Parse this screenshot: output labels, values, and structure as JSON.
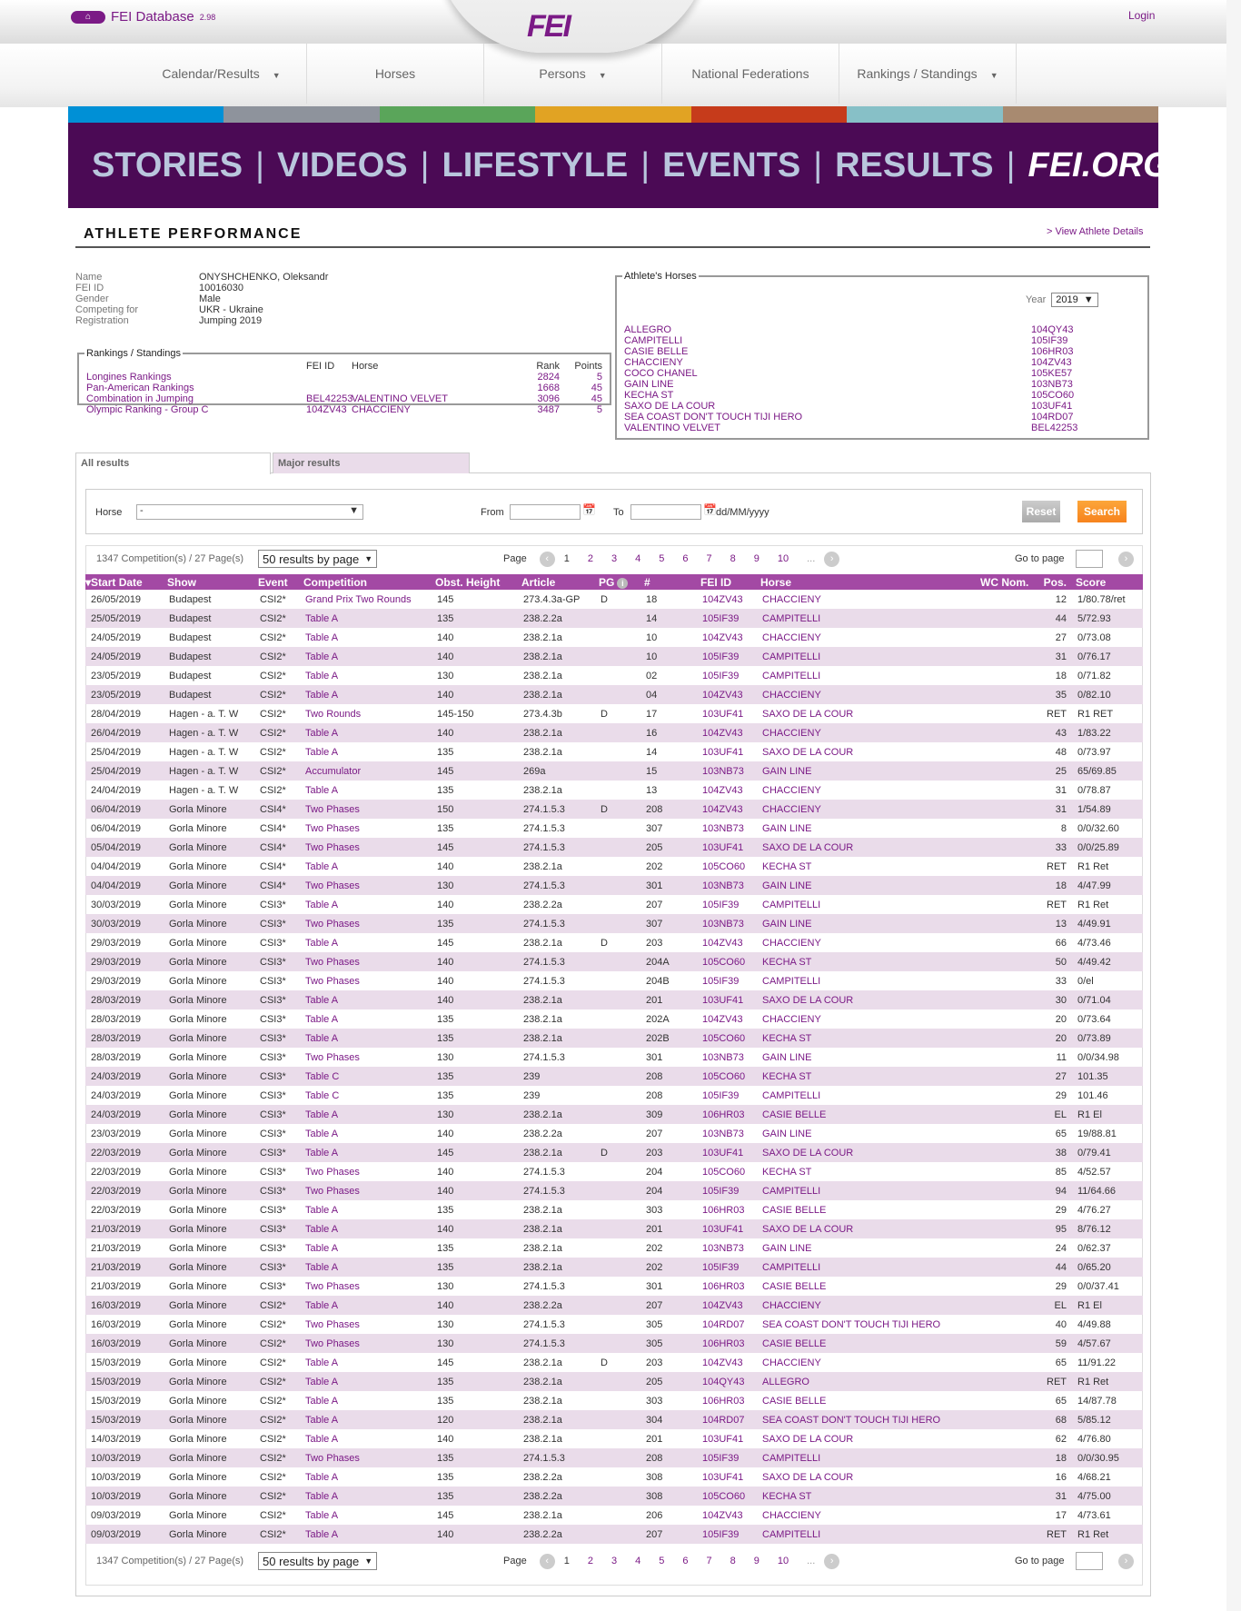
{
  "header": {
    "db_title": "FEI Database",
    "db_version": "2.98",
    "logo": "FEI",
    "login": "Login"
  },
  "nav": [
    {
      "label": "Calendar/Results",
      "dropdown": true
    },
    {
      "label": "Horses",
      "dropdown": false
    },
    {
      "label": "Persons",
      "dropdown": true
    },
    {
      "label": "National Federations",
      "dropdown": false
    },
    {
      "label": "Rankings / Standings",
      "dropdown": true
    }
  ],
  "stripe_colors": [
    "#0090d6",
    "#8e939c",
    "#5aa55a",
    "#e1a323",
    "#c63b1b",
    "#87c0c7",
    "#a88a70"
  ],
  "banner": {
    "items": [
      "STORIES",
      "VIDEOS",
      "LIFESTYLE",
      "EVENTS",
      "RESULTS",
      "FEI.ORG"
    ]
  },
  "page": {
    "title": "ATHLETE PERFORMANCE",
    "view_details": "> View Athlete Details"
  },
  "athlete": [
    {
      "label": "Name",
      "value": "ONYSHCHENKO, Oleksandr"
    },
    {
      "label": "FEI ID",
      "value": "10016030"
    },
    {
      "label": "Gender",
      "value": "Male"
    },
    {
      "label": "Competing for",
      "value": "UKR - Ukraine"
    },
    {
      "label": "Registration",
      "value": "Jumping 2019"
    }
  ],
  "rankings": {
    "legend": "Rankings / Standings",
    "headers": {
      "fei_id": "FEI ID",
      "horse": "Horse",
      "rank": "Rank",
      "points": "Points"
    },
    "rows": [
      {
        "name": "Longines Rankings",
        "fei_id": "",
        "horse": "",
        "rank": "2824",
        "points": "5"
      },
      {
        "name": "Pan-American Rankings",
        "fei_id": "",
        "horse": "",
        "rank": "1668",
        "points": "45"
      },
      {
        "name": "Combination in Jumping",
        "fei_id": "BEL42253",
        "horse": "VALENTINO VELVET",
        "rank": "3096",
        "points": "45"
      },
      {
        "name": "Olympic Ranking - Group C",
        "fei_id": "104ZV43",
        "horse": "CHACCIENY",
        "rank": "3487",
        "points": "5"
      }
    ]
  },
  "horses": {
    "legend": "Athlete's Horses",
    "year_label": "Year",
    "year": "2019",
    "list": [
      [
        "ALLEGRO",
        "104QY43"
      ],
      [
        "CAMPITELLI",
        "105IF39"
      ],
      [
        "CASIE BELLE",
        "106HR03"
      ],
      [
        "CHACCIENY",
        "104ZV43"
      ],
      [
        "COCO CHANEL",
        "105KE57"
      ],
      [
        "GAIN LINE",
        "103NB73"
      ],
      [
        "KECHA ST",
        "105CO60"
      ],
      [
        "SAXO DE LA COUR",
        "103UF41"
      ],
      [
        "SEA COAST DON'T TOUCH TIJI HERO",
        "104RD07"
      ],
      [
        "VALENTINO VELVET",
        "BEL42253"
      ]
    ]
  },
  "tabs": [
    {
      "label": "All results",
      "active": true
    },
    {
      "label": "Major results",
      "active": false
    }
  ],
  "filter": {
    "horse_label": "Horse",
    "horse_value": "-",
    "from_label": "From",
    "to_label": "To",
    "date_format": "dd/MM/yyyy",
    "reset": "Reset",
    "search": "Search"
  },
  "pager": {
    "summary": "1347 Competition(s) / 27 Page(s)",
    "per_page": "50 results by page",
    "page_label": "Page",
    "pages": [
      "1",
      "2",
      "3",
      "4",
      "5",
      "6",
      "7",
      "8",
      "9",
      "10",
      "..."
    ],
    "current": "1",
    "goto_label": "Go to page"
  },
  "colors": {
    "accent": "#7b1a86",
    "header_bg": "#a349a4",
    "row_alt": "#eadcea",
    "banner": "#4b0a55",
    "search_btn": "#f7941d"
  },
  "table": {
    "headers": [
      "Start Date",
      "Show",
      "Event",
      "Competition",
      "Obst. Height",
      "Article",
      "PG",
      "#",
      "FEI ID",
      "Horse",
      "WC Nom.",
      "Pos.",
      "Score"
    ],
    "rows": [
      [
        "26/05/2019",
        "Budapest",
        "CSI2*",
        "Grand Prix Two Rounds",
        "145",
        "273.4.3a-GP",
        "D",
        "18",
        "104ZV43",
        "CHACCIENY",
        "",
        "12",
        "1/80.78/ret"
      ],
      [
        "25/05/2019",
        "Budapest",
        "CSI2*",
        "Table A",
        "135",
        "238.2.2a",
        "",
        "14",
        "105IF39",
        "CAMPITELLI",
        "",
        "44",
        "5/72.93"
      ],
      [
        "24/05/2019",
        "Budapest",
        "CSI2*",
        "Table A",
        "140",
        "238.2.1a",
        "",
        "10",
        "104ZV43",
        "CHACCIENY",
        "",
        "27",
        "0/73.08"
      ],
      [
        "24/05/2019",
        "Budapest",
        "CSI2*",
        "Table A",
        "140",
        "238.2.1a",
        "",
        "10",
        "105IF39",
        "CAMPITELLI",
        "",
        "31",
        "0/76.17"
      ],
      [
        "23/05/2019",
        "Budapest",
        "CSI2*",
        "Table A",
        "130",
        "238.2.1a",
        "",
        "02",
        "105IF39",
        "CAMPITELLI",
        "",
        "18",
        "0/71.82"
      ],
      [
        "23/05/2019",
        "Budapest",
        "CSI2*",
        "Table A",
        "140",
        "238.2.1a",
        "",
        "04",
        "104ZV43",
        "CHACCIENY",
        "",
        "35",
        "0/82.10"
      ],
      [
        "28/04/2019",
        "Hagen - a. T. W",
        "CSI2*",
        "Two Rounds",
        "145-150",
        "273.4.3b",
        "D",
        "17",
        "103UF41",
        "SAXO DE LA COUR",
        "",
        "RET",
        "R1 RET"
      ],
      [
        "26/04/2019",
        "Hagen - a. T. W",
        "CSI2*",
        "Table A",
        "140",
        "238.2.1a",
        "",
        "16",
        "104ZV43",
        "CHACCIENY",
        "",
        "43",
        "1/83.22"
      ],
      [
        "25/04/2019",
        "Hagen - a. T. W",
        "CSI2*",
        "Table A",
        "135",
        "238.2.1a",
        "",
        "14",
        "103UF41",
        "SAXO DE LA COUR",
        "",
        "48",
        "0/73.97"
      ],
      [
        "25/04/2019",
        "Hagen - a. T. W",
        "CSI2*",
        "Accumulator",
        "145",
        "269a",
        "",
        "15",
        "103NB73",
        "GAIN LINE",
        "",
        "25",
        "65/69.85"
      ],
      [
        "24/04/2019",
        "Hagen - a. T. W",
        "CSI2*",
        "Table A",
        "135",
        "238.2.1a",
        "",
        "13",
        "104ZV43",
        "CHACCIENY",
        "",
        "31",
        "0/78.87"
      ],
      [
        "06/04/2019",
        "Gorla Minore",
        "CSI4*",
        "Two Phases",
        "150",
        "274.1.5.3",
        "D",
        "208",
        "104ZV43",
        "CHACCIENY",
        "",
        "31",
        "1/54.89"
      ],
      [
        "06/04/2019",
        "Gorla Minore",
        "CSI4*",
        "Two Phases",
        "135",
        "274.1.5.3",
        "",
        "307",
        "103NB73",
        "GAIN LINE",
        "",
        "8",
        "0/0/32.60"
      ],
      [
        "05/04/2019",
        "Gorla Minore",
        "CSI4*",
        "Two Phases",
        "145",
        "274.1.5.3",
        "",
        "205",
        "103UF41",
        "SAXO DE LA COUR",
        "",
        "33",
        "0/0/25.89"
      ],
      [
        "04/04/2019",
        "Gorla Minore",
        "CSI4*",
        "Table A",
        "140",
        "238.2.1a",
        "",
        "202",
        "105CO60",
        "KECHA ST",
        "",
        "RET",
        "R1 Ret"
      ],
      [
        "04/04/2019",
        "Gorla Minore",
        "CSI4*",
        "Two Phases",
        "130",
        "274.1.5.3",
        "",
        "301",
        "103NB73",
        "GAIN LINE",
        "",
        "18",
        "4/47.99"
      ],
      [
        "30/03/2019",
        "Gorla Minore",
        "CSI3*",
        "Table A",
        "140",
        "238.2.2a",
        "",
        "207",
        "105IF39",
        "CAMPITELLI",
        "",
        "RET",
        "R1 Ret"
      ],
      [
        "30/03/2019",
        "Gorla Minore",
        "CSI3*",
        "Two Phases",
        "135",
        "274.1.5.3",
        "",
        "307",
        "103NB73",
        "GAIN LINE",
        "",
        "13",
        "4/49.91"
      ],
      [
        "29/03/2019",
        "Gorla Minore",
        "CSI3*",
        "Table A",
        "145",
        "238.2.1a",
        "D",
        "203",
        "104ZV43",
        "CHACCIENY",
        "",
        "66",
        "4/73.46"
      ],
      [
        "29/03/2019",
        "Gorla Minore",
        "CSI3*",
        "Two Phases",
        "140",
        "274.1.5.3",
        "",
        "204A",
        "105CO60",
        "KECHA ST",
        "",
        "50",
        "4/49.42"
      ],
      [
        "29/03/2019",
        "Gorla Minore",
        "CSI3*",
        "Two Phases",
        "140",
        "274.1.5.3",
        "",
        "204B",
        "105IF39",
        "CAMPITELLI",
        "",
        "33",
        "0/el"
      ],
      [
        "28/03/2019",
        "Gorla Minore",
        "CSI3*",
        "Table A",
        "140",
        "238.2.1a",
        "",
        "201",
        "103UF41",
        "SAXO DE LA COUR",
        "",
        "30",
        "0/71.04"
      ],
      [
        "28/03/2019",
        "Gorla Minore",
        "CSI3*",
        "Table A",
        "135",
        "238.2.1a",
        "",
        "202A",
        "104ZV43",
        "CHACCIENY",
        "",
        "20",
        "0/73.64"
      ],
      [
        "28/03/2019",
        "Gorla Minore",
        "CSI3*",
        "Table A",
        "135",
        "238.2.1a",
        "",
        "202B",
        "105CO60",
        "KECHA ST",
        "",
        "20",
        "0/73.89"
      ],
      [
        "28/03/2019",
        "Gorla Minore",
        "CSI3*",
        "Two Phases",
        "130",
        "274.1.5.3",
        "",
        "301",
        "103NB73",
        "GAIN LINE",
        "",
        "11",
        "0/0/34.98"
      ],
      [
        "24/03/2019",
        "Gorla Minore",
        "CSI3*",
        "Table C",
        "135",
        "239",
        "",
        "208",
        "105CO60",
        "KECHA ST",
        "",
        "27",
        "101.35"
      ],
      [
        "24/03/2019",
        "Gorla Minore",
        "CSI3*",
        "Table C",
        "135",
        "239",
        "",
        "208",
        "105IF39",
        "CAMPITELLI",
        "",
        "29",
        "101.46"
      ],
      [
        "24/03/2019",
        "Gorla Minore",
        "CSI3*",
        "Table A",
        "130",
        "238.2.1a",
        "",
        "309",
        "106HR03",
        "CASIE BELLE",
        "",
        "EL",
        "R1 El"
      ],
      [
        "23/03/2019",
        "Gorla Minore",
        "CSI3*",
        "Table A",
        "140",
        "238.2.2a",
        "",
        "207",
        "103NB73",
        "GAIN LINE",
        "",
        "65",
        "19/88.81"
      ],
      [
        "22/03/2019",
        "Gorla Minore",
        "CSI3*",
        "Table A",
        "145",
        "238.2.1a",
        "D",
        "203",
        "103UF41",
        "SAXO DE LA COUR",
        "",
        "38",
        "0/79.41"
      ],
      [
        "22/03/2019",
        "Gorla Minore",
        "CSI3*",
        "Two Phases",
        "140",
        "274.1.5.3",
        "",
        "204",
        "105CO60",
        "KECHA ST",
        "",
        "85",
        "4/52.57"
      ],
      [
        "22/03/2019",
        "Gorla Minore",
        "CSI3*",
        "Two Phases",
        "140",
        "274.1.5.3",
        "",
        "204",
        "105IF39",
        "CAMPITELLI",
        "",
        "94",
        "11/64.66"
      ],
      [
        "22/03/2019",
        "Gorla Minore",
        "CSI3*",
        "Table A",
        "135",
        "238.2.1a",
        "",
        "303",
        "106HR03",
        "CASIE BELLE",
        "",
        "29",
        "4/76.27"
      ],
      [
        "21/03/2019",
        "Gorla Minore",
        "CSI3*",
        "Table A",
        "140",
        "238.2.1a",
        "",
        "201",
        "103UF41",
        "SAXO DE LA COUR",
        "",
        "95",
        "8/76.12"
      ],
      [
        "21/03/2019",
        "Gorla Minore",
        "CSI3*",
        "Table A",
        "135",
        "238.2.1a",
        "",
        "202",
        "103NB73",
        "GAIN LINE",
        "",
        "24",
        "0/62.37"
      ],
      [
        "21/03/2019",
        "Gorla Minore",
        "CSI3*",
        "Table A",
        "135",
        "238.2.1a",
        "",
        "202",
        "105IF39",
        "CAMPITELLI",
        "",
        "44",
        "0/65.20"
      ],
      [
        "21/03/2019",
        "Gorla Minore",
        "CSI3*",
        "Two Phases",
        "130",
        "274.1.5.3",
        "",
        "301",
        "106HR03",
        "CASIE BELLE",
        "",
        "29",
        "0/0/37.41"
      ],
      [
        "16/03/2019",
        "Gorla Minore",
        "CSI2*",
        "Table A",
        "140",
        "238.2.2a",
        "",
        "207",
        "104ZV43",
        "CHACCIENY",
        "",
        "EL",
        "R1 El"
      ],
      [
        "16/03/2019",
        "Gorla Minore",
        "CSI2*",
        "Two Phases",
        "130",
        "274.1.5.3",
        "",
        "305",
        "104RD07",
        "SEA COAST DON'T TOUCH TIJI HERO",
        "",
        "40",
        "4/49.88"
      ],
      [
        "16/03/2019",
        "Gorla Minore",
        "CSI2*",
        "Two Phases",
        "130",
        "274.1.5.3",
        "",
        "305",
        "106HR03",
        "CASIE BELLE",
        "",
        "59",
        "4/57.67"
      ],
      [
        "15/03/2019",
        "Gorla Minore",
        "CSI2*",
        "Table A",
        "145",
        "238.2.1a",
        "D",
        "203",
        "104ZV43",
        "CHACCIENY",
        "",
        "65",
        "11/91.22"
      ],
      [
        "15/03/2019",
        "Gorla Minore",
        "CSI2*",
        "Table A",
        "135",
        "238.2.1a",
        "",
        "205",
        "104QY43",
        "ALLEGRO",
        "",
        "RET",
        "R1 Ret"
      ],
      [
        "15/03/2019",
        "Gorla Minore",
        "CSI2*",
        "Table A",
        "135",
        "238.2.1a",
        "",
        "303",
        "106HR03",
        "CASIE BELLE",
        "",
        "65",
        "14/87.78"
      ],
      [
        "15/03/2019",
        "Gorla Minore",
        "CSI2*",
        "Table A",
        "120",
        "238.2.1a",
        "",
        "304",
        "104RD07",
        "SEA COAST DON'T TOUCH TIJI HERO",
        "",
        "68",
        "5/85.12"
      ],
      [
        "14/03/2019",
        "Gorla Minore",
        "CSI2*",
        "Table A",
        "140",
        "238.2.1a",
        "",
        "201",
        "103UF41",
        "SAXO DE LA COUR",
        "",
        "62",
        "4/76.80"
      ],
      [
        "10/03/2019",
        "Gorla Minore",
        "CSI2*",
        "Two Phases",
        "135",
        "274.1.5.3",
        "",
        "208",
        "105IF39",
        "CAMPITELLI",
        "",
        "18",
        "0/0/30.95"
      ],
      [
        "10/03/2019",
        "Gorla Minore",
        "CSI2*",
        "Table A",
        "135",
        "238.2.2a",
        "",
        "308",
        "103UF41",
        "SAXO DE LA COUR",
        "",
        "16",
        "4/68.21"
      ],
      [
        "10/03/2019",
        "Gorla Minore",
        "CSI2*",
        "Table A",
        "135",
        "238.2.2a",
        "",
        "308",
        "105CO60",
        "KECHA ST",
        "",
        "31",
        "4/75.00"
      ],
      [
        "09/03/2019",
        "Gorla Minore",
        "CSI2*",
        "Table A",
        "145",
        "238.2.1a",
        "",
        "206",
        "104ZV43",
        "CHACCIENY",
        "",
        "17",
        "4/73.61"
      ],
      [
        "09/03/2019",
        "Gorla Minore",
        "CSI2*",
        "Table A",
        "140",
        "238.2.2a",
        "",
        "207",
        "105IF39",
        "CAMPITELLI",
        "",
        "RET",
        "R1 Ret"
      ]
    ]
  }
}
